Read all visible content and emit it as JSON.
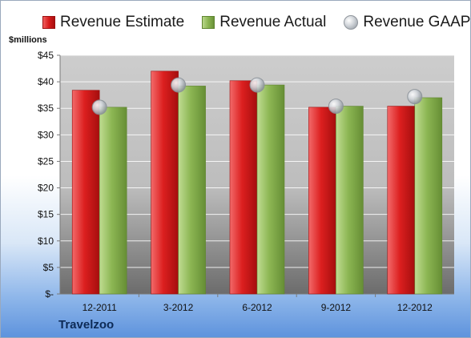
{
  "legend": {
    "estimate": "Revenue Estimate",
    "actual": "Revenue Actual",
    "gaap": "Revenue GAAP"
  },
  "unit_label": "$millions",
  "company": "Travelzoo",
  "colors": {
    "estimate": "#d81c1c",
    "actual": "#8bb552",
    "gaap": "#c9ced4",
    "plot_top": "#c9c9c9",
    "plot_bottom": "#6f6f6f"
  },
  "chart_data": {
    "type": "bar",
    "categories": [
      "12-2011",
      "3-2012",
      "6-2012",
      "9-2012",
      "12-2012"
    ],
    "series": [
      {
        "name": "Revenue Estimate",
        "values": [
          38.4,
          42.0,
          40.2,
          35.2,
          35.4
        ]
      },
      {
        "name": "Revenue Actual",
        "values": [
          35.2,
          39.2,
          39.4,
          35.4,
          37.0
        ]
      },
      {
        "name": "Revenue GAAP",
        "values": [
          35.2,
          39.4,
          39.4,
          35.4,
          37.2
        ],
        "marker": "circle"
      }
    ],
    "yticks": [
      "$-",
      "$5",
      "$10",
      "$15",
      "$20",
      "$25",
      "$30",
      "$35",
      "$40",
      "$45"
    ],
    "ylabel": "$millions",
    "ylim": [
      0,
      45
    ],
    "grid": true,
    "legend_position": "top"
  }
}
